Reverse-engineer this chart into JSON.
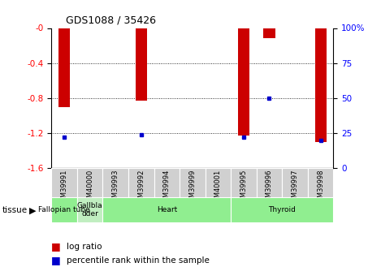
{
  "title": "GDS1088 / 35426",
  "samples": [
    "GSM39991",
    "GSM40000",
    "GSM39993",
    "GSM39992",
    "GSM39994",
    "GSM39999",
    "GSM40001",
    "GSM39995",
    "GSM39996",
    "GSM39997",
    "GSM39998"
  ],
  "log_ratio": [
    -0.9,
    0.0,
    0.0,
    -0.83,
    0.0,
    0.0,
    0.0,
    -1.23,
    -0.12,
    0.0,
    -1.3
  ],
  "percentile_rank": [
    22,
    0,
    0,
    24,
    0,
    0,
    0,
    22,
    50,
    0,
    20
  ],
  "tissues": [
    {
      "label": "Fallopian tube",
      "start": 0,
      "end": 1
    },
    {
      "label": "Gallbla\ndder",
      "start": 1,
      "end": 2
    },
    {
      "label": "Heart",
      "start": 2,
      "end": 7
    },
    {
      "label": "Thyroid",
      "start": 7,
      "end": 11
    }
  ],
  "ylim_left": [
    -1.6,
    0.0
  ],
  "ylim_right": [
    0,
    100
  ],
  "left_ticks": [
    -1.6,
    -1.2,
    -0.8,
    -0.4,
    0.0
  ],
  "right_ticks": [
    0,
    25,
    50,
    75,
    100
  ],
  "bar_color": "#cc0000",
  "rank_color": "#0000cc",
  "bg_color": "#ffffff",
  "sample_box_color": "#d0d0d0",
  "tissue_color": "#90ee90",
  "tissue_gb_color": "#c0eec0"
}
